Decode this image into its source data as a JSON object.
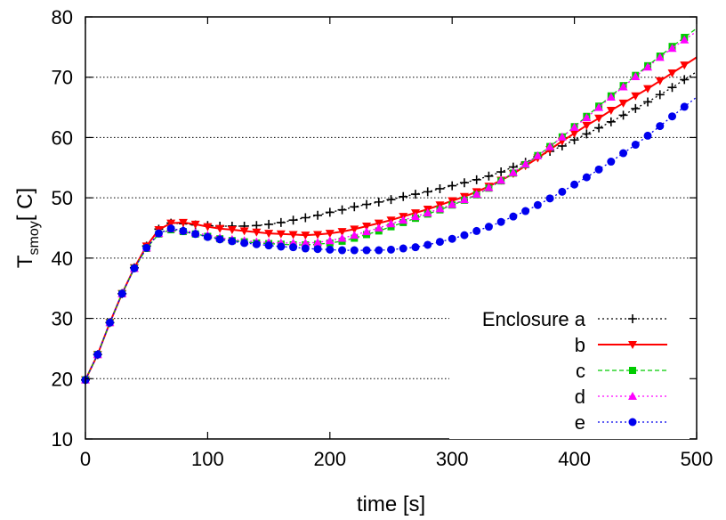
{
  "chart_data": {
    "type": "line",
    "title": "",
    "xlabel": "time [s]",
    "ylabel": {
      "main": "T",
      "sub": "smoy",
      "rest": "[ C]"
    },
    "xlim": [
      0,
      500
    ],
    "ylim": [
      10,
      80
    ],
    "x_ticks": [
      0,
      100,
      200,
      300,
      400,
      500
    ],
    "y_ticks": [
      10,
      20,
      30,
      40,
      50,
      60,
      70,
      80
    ],
    "grid": "horizontal dotted",
    "legend": {
      "placement": "bottom-right",
      "entries": [
        {
          "label": "Enclosure a",
          "series_index": 0
        },
        {
          "label": "b",
          "series_index": 1
        },
        {
          "label": "c",
          "series_index": 2
        },
        {
          "label": "d",
          "series_index": 3
        },
        {
          "label": "e",
          "series_index": 4
        }
      ]
    },
    "x": [
      0,
      10,
      20,
      30,
      40,
      50,
      60,
      70,
      80,
      90,
      100,
      110,
      120,
      130,
      140,
      150,
      160,
      170,
      180,
      190,
      200,
      210,
      220,
      230,
      240,
      250,
      260,
      270,
      280,
      290,
      300,
      310,
      320,
      330,
      340,
      350,
      360,
      370,
      380,
      390,
      400,
      410,
      420,
      430,
      440,
      450,
      460,
      470,
      480,
      490
    ],
    "series": [
      {
        "name": "Enclosure a",
        "color": "#000000",
        "marker": "plus",
        "line": "dotted",
        "values": [
          19.8,
          24.0,
          29.3,
          34.1,
          38.4,
          42.0,
          44.8,
          45.8,
          45.7,
          45.5,
          45.4,
          45.3,
          45.3,
          45.3,
          45.4,
          45.6,
          45.9,
          46.3,
          46.7,
          47.1,
          47.6,
          48.0,
          48.5,
          48.9,
          49.3,
          49.7,
          50.2,
          50.6,
          51.0,
          51.5,
          52.0,
          52.5,
          53.0,
          53.6,
          54.3,
          55.1,
          55.9,
          56.8,
          57.7,
          58.6,
          59.6,
          60.6,
          61.6,
          62.6,
          63.7,
          64.8,
          65.9,
          67.1,
          68.3,
          69.6
        ]
      },
      {
        "name": "b",
        "color": "#ff0000",
        "marker": "triangle-down",
        "line": "solid",
        "values": [
          19.8,
          24.0,
          29.3,
          34.1,
          38.4,
          42.0,
          44.7,
          45.8,
          45.9,
          45.6,
          45.2,
          44.9,
          44.7,
          44.5,
          44.3,
          44.1,
          44.0,
          43.9,
          43.8,
          43.9,
          44.1,
          44.4,
          44.8,
          45.3,
          45.8,
          46.3,
          46.9,
          47.5,
          48.1,
          48.8,
          49.5,
          50.2,
          51.0,
          51.9,
          52.9,
          54.0,
          55.3,
          56.6,
          58.0,
          59.4,
          60.7,
          62.0,
          63.2,
          64.5,
          65.7,
          66.9,
          68.1,
          69.4,
          70.7,
          72.0
        ]
      },
      {
        "name": "c",
        "color": "#00cc00",
        "marker": "square",
        "line": "dashed",
        "values": [
          19.8,
          24.0,
          29.3,
          34.1,
          38.3,
          41.6,
          44.0,
          44.7,
          44.4,
          44.0,
          43.6,
          43.2,
          42.9,
          42.7,
          42.5,
          42.4,
          42.3,
          42.2,
          42.2,
          42.3,
          42.5,
          42.8,
          43.3,
          43.9,
          44.5,
          45.2,
          45.9,
          46.6,
          47.3,
          48.0,
          48.8,
          49.6,
          50.5,
          51.6,
          52.8,
          54.1,
          55.5,
          57.0,
          58.5,
          60.1,
          61.8,
          63.5,
          65.2,
          66.9,
          68.6,
          70.3,
          71.9,
          73.5,
          75.1,
          76.6
        ]
      },
      {
        "name": "d",
        "color": "#ff00ff",
        "marker": "triangle-up",
        "line": "dotted",
        "values": [
          19.8,
          24.0,
          29.3,
          34.1,
          38.3,
          41.7,
          44.1,
          44.9,
          44.6,
          44.2,
          43.8,
          43.4,
          43.1,
          42.9,
          42.7,
          42.6,
          42.5,
          42.5,
          42.5,
          42.6,
          42.9,
          43.3,
          43.8,
          44.4,
          45.0,
          45.7,
          46.3,
          46.9,
          47.5,
          48.2,
          48.9,
          49.7,
          50.6,
          51.7,
          52.9,
          54.2,
          55.6,
          57.0,
          58.5,
          60.1,
          61.7,
          63.3,
          65.0,
          66.7,
          68.4,
          70.1,
          71.7,
          73.3,
          74.8,
          76.2
        ]
      },
      {
        "name": "e",
        "color": "#0000ee",
        "marker": "circle",
        "line": "dotted",
        "values": [
          19.8,
          24.0,
          29.3,
          34.1,
          38.3,
          41.7,
          44.1,
          44.9,
          44.5,
          44.0,
          43.5,
          43.1,
          42.8,
          42.5,
          42.3,
          42.1,
          41.9,
          41.8,
          41.6,
          41.5,
          41.4,
          41.3,
          41.3,
          41.3,
          41.3,
          41.4,
          41.6,
          41.8,
          42.2,
          42.7,
          43.2,
          43.8,
          44.5,
          45.2,
          46.0,
          46.9,
          47.8,
          48.8,
          49.9,
          51.0,
          52.2,
          53.4,
          54.7,
          56.0,
          57.4,
          58.8,
          60.3,
          61.9,
          63.5,
          65.1
        ]
      }
    ]
  }
}
